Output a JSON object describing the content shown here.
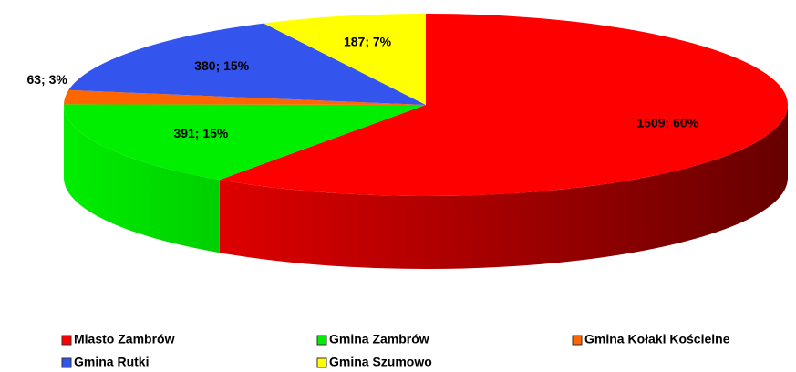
{
  "chart_data": {
    "type": "pie3d",
    "categories": [
      "Miasto Zambrów",
      "Gmina Zambrów",
      "Gmina Kołaki Kościelne",
      "Gmina Rutki",
      "Gmina Szumowo"
    ],
    "values": [
      1509,
      391,
      63,
      380,
      187
    ],
    "value_labels": [
      "1509; 60%",
      "391; 15%",
      "63; 3%",
      "380; 15%",
      "187; 7%"
    ],
    "colors": [
      "#ff0000",
      "#00ee00",
      "#ff6600",
      "#3355ee",
      "#ffff00"
    ],
    "legend": "bottom"
  }
}
